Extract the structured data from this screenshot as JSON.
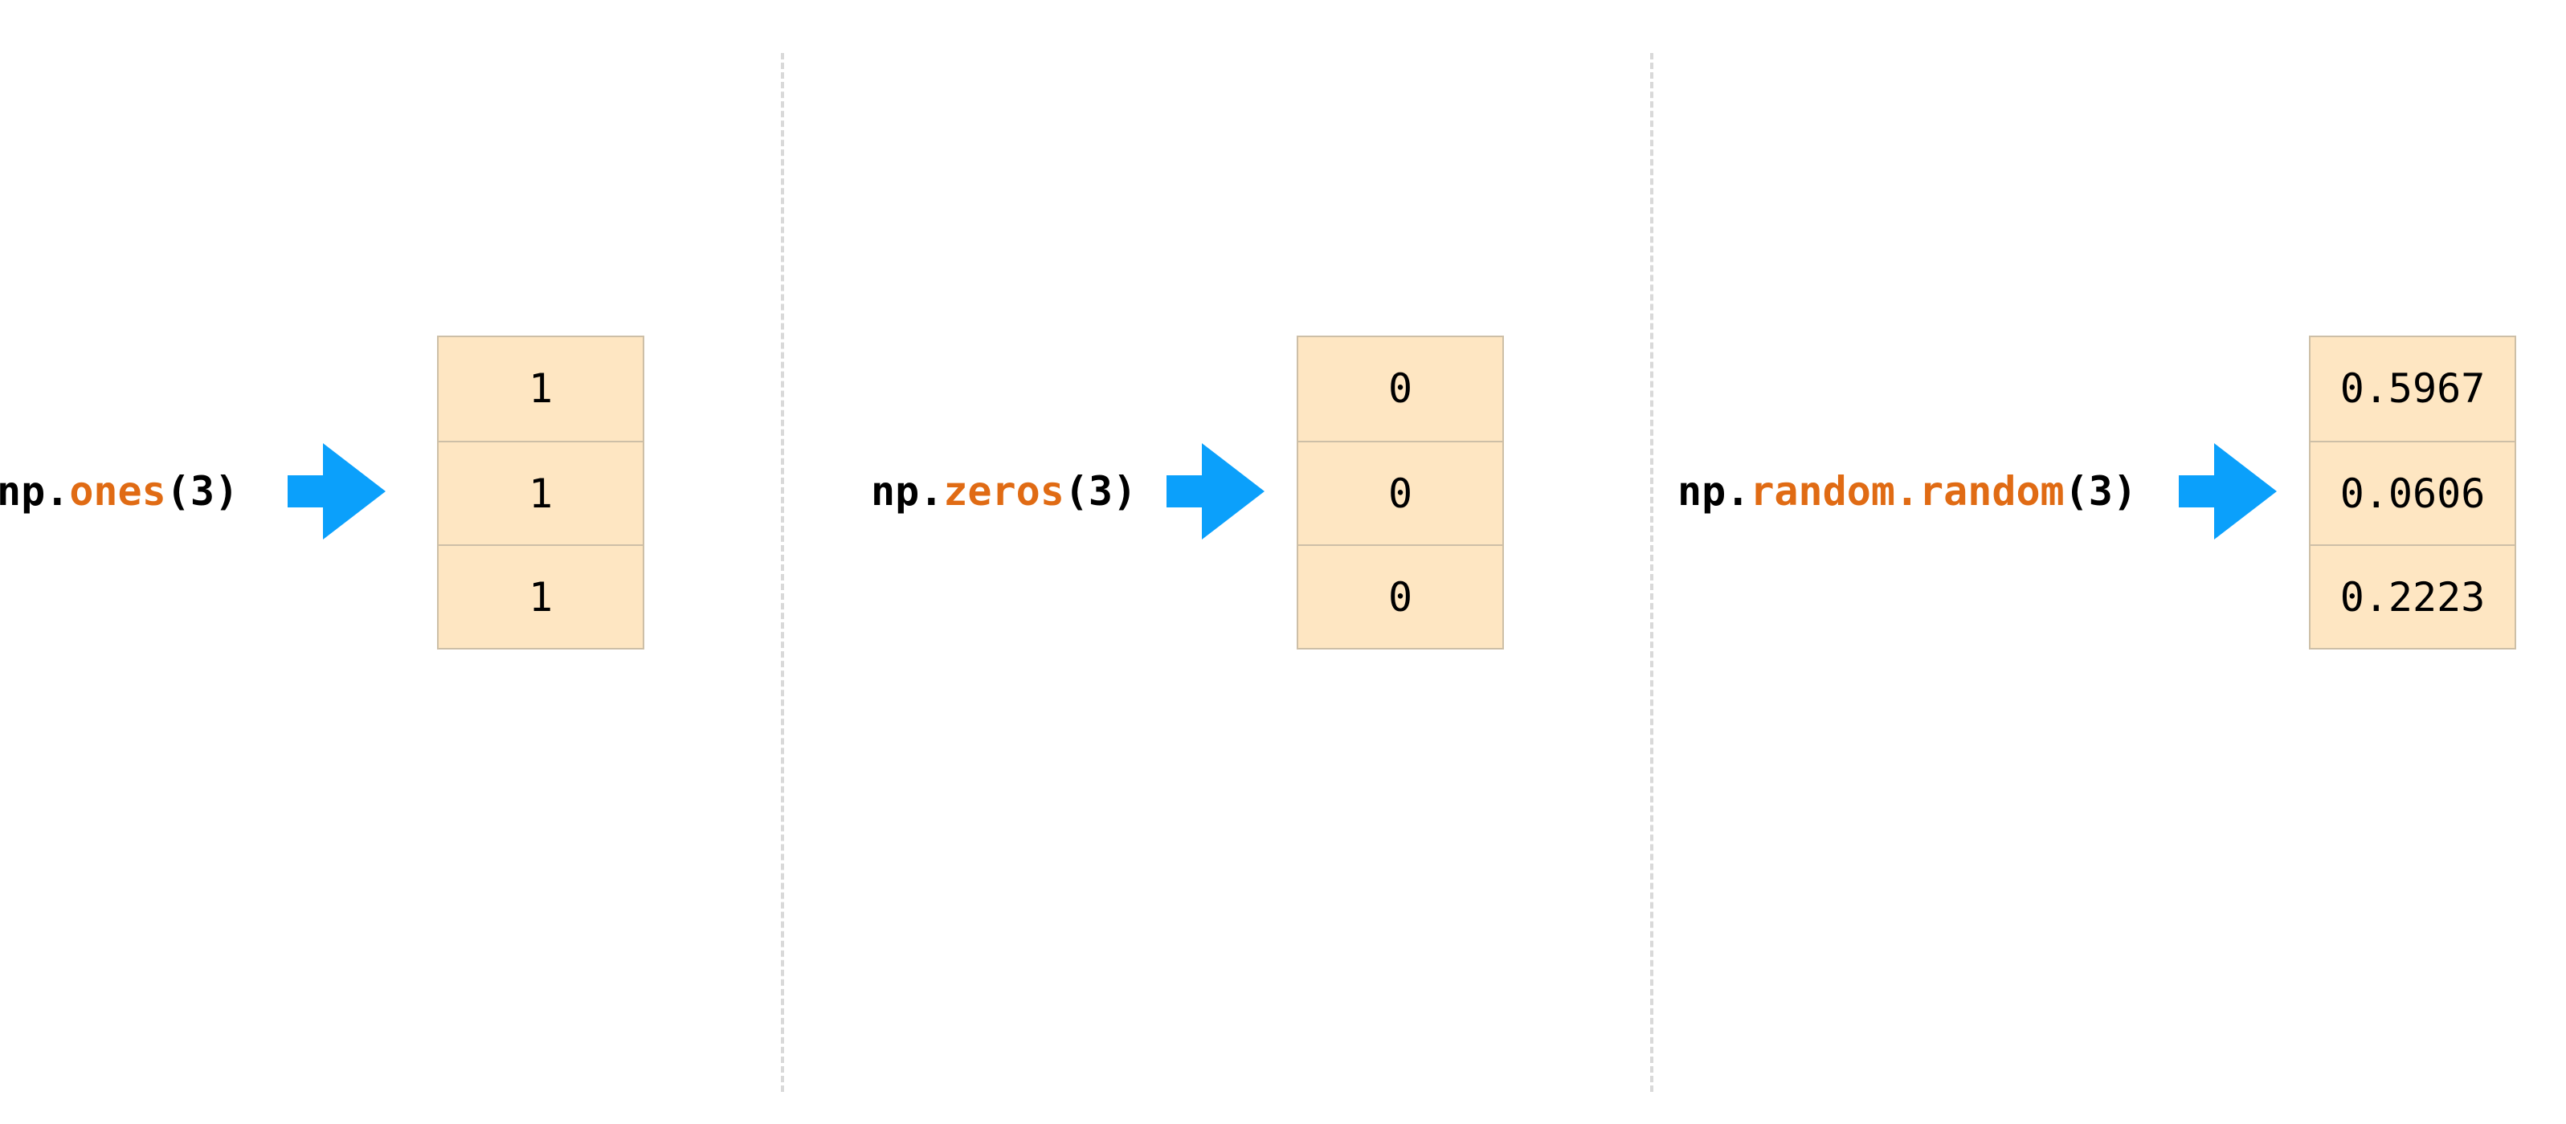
{
  "colors": {
    "arrow": "#0ba0fb",
    "function_name": "#e06b14",
    "cell_fill": "#fee6c2",
    "cell_border": "#cdbfa7",
    "divider": "#d9d9d9"
  },
  "panels": [
    {
      "prefix": "np.",
      "function": "ones",
      "args": "(3)",
      "values": [
        "1",
        "1",
        "1"
      ]
    },
    {
      "prefix": "np.",
      "function": "zeros",
      "args": "(3)",
      "values": [
        "0",
        "0",
        "0"
      ]
    },
    {
      "prefix": "np.",
      "function": "random.random",
      "args": "(3)",
      "values": [
        "0.5967",
        "0.0606",
        "0.2223"
      ]
    }
  ]
}
